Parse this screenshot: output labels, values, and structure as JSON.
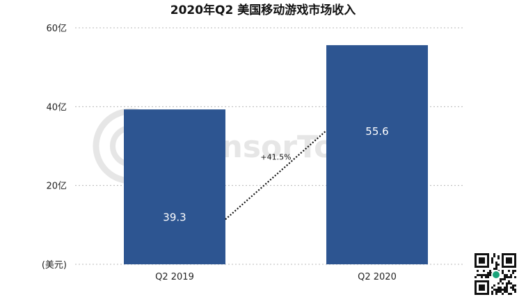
{
  "chart_data": {
    "type": "bar",
    "title": "2020年Q2 美国移动游戏市场收入",
    "categories": [
      "Q2  2019",
      "Q2 2020"
    ],
    "values": [
      39.3,
      55.6
    ],
    "value_labels": [
      "39.3",
      "55.6"
    ],
    "ylim": [
      0,
      60
    ],
    "yticks": [
      {
        "value": 60,
        "label": "60亿"
      },
      {
        "value": 40,
        "label": "40亿"
      },
      {
        "value": 20,
        "label": "20亿"
      },
      {
        "value": 0,
        "label": "(美元)"
      }
    ],
    "annotation": "+41.5%",
    "grid": true,
    "legend": "none",
    "bar_color": "#2d5591"
  },
  "watermark": {
    "text": "SensorTower"
  }
}
